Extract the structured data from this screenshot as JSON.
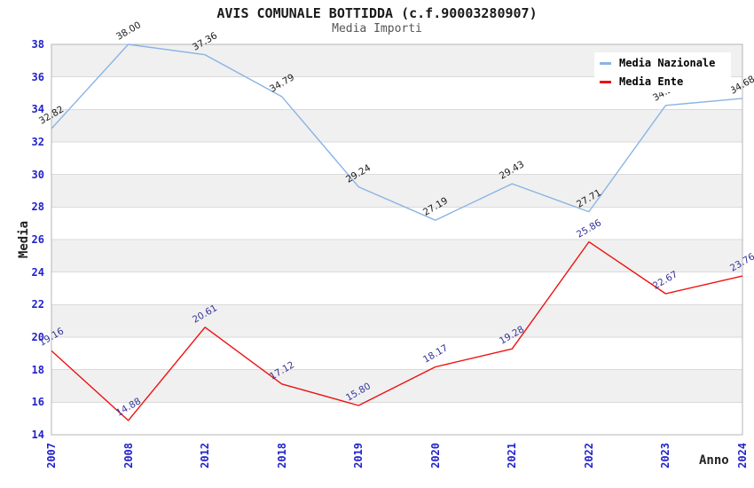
{
  "header": {
    "title": "AVIS COMUNALE BOTTIDDA (c.f.90003280907)",
    "subtitle": "Media Importi"
  },
  "colors": {
    "band_gray": "#f0f0f0",
    "band_white": "#ffffff",
    "grid": "#dadada",
    "border": "#b5b5b5",
    "tick_label": "#2222cc",
    "title": "#1a1a1a",
    "subtitle": "#555555",
    "axis_title": "#222222",
    "legend_text": "#000000",
    "legend_bg": "#ffffff"
  },
  "chart_data": {
    "type": "line",
    "title": "AVIS COMUNALE BOTTIDDA (c.f.90003280907)",
    "subtitle": "Media Importi",
    "xlabel": "Anno",
    "ylabel": "Media",
    "ylim": [
      14,
      38
    ],
    "ytick_step": 2,
    "grid": "horizontal gridlines with alternating gray/white bands",
    "legend_position": "top-right",
    "categories": [
      "2007",
      "2008",
      "2012",
      "2018",
      "2019",
      "2020",
      "2021",
      "2022",
      "2023",
      "2024"
    ],
    "series": [
      {
        "name": "Media Nazionale",
        "color": "#8ab4e4",
        "label_color": "#1a1a1a",
        "values": [
          32.82,
          38.0,
          37.36,
          34.79,
          29.24,
          27.19,
          29.43,
          27.71,
          34.25,
          34.68
        ],
        "note": "2023 value label partially hidden behind legend box in source image"
      },
      {
        "name": "Media Ente",
        "color": "#ee1111",
        "label_color": "#333399",
        "values": [
          19.16,
          14.88,
          20.61,
          17.12,
          15.8,
          18.17,
          19.28,
          25.86,
          22.67,
          23.76
        ]
      }
    ]
  }
}
